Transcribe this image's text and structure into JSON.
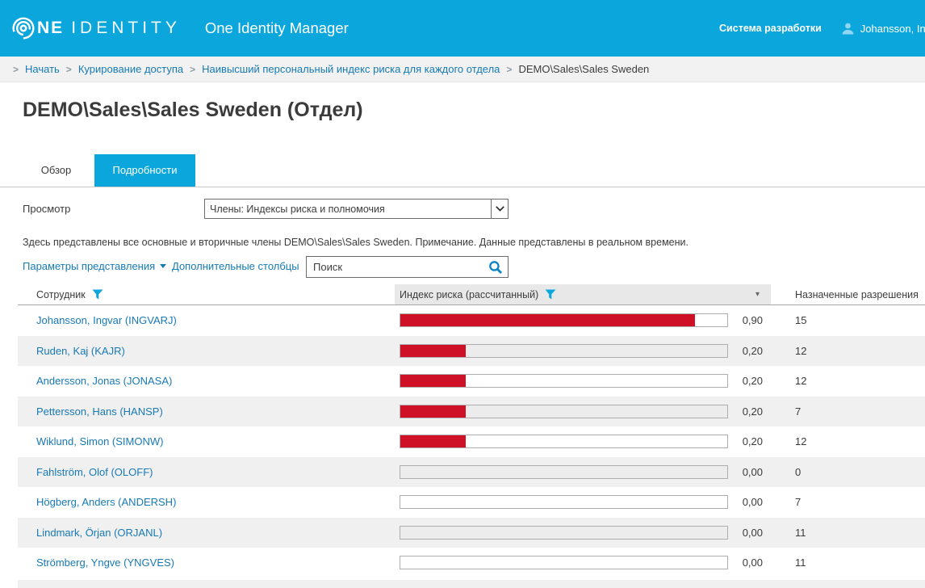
{
  "header": {
    "logo_ne": "NE",
    "logo_identity": "IDENTITY",
    "app_title": "One Identity Manager",
    "environment": "Система разработки",
    "user": "Johansson, Ingvar"
  },
  "breadcrumb": {
    "items": [
      "Начать",
      "Курирование доступа",
      "Наивысший персональный индекс риска для каждого отдела",
      "DEMO\\Sales\\Sales Sweden"
    ]
  },
  "page": {
    "title": "DEMO\\Sales\\Sales Sweden (Отдел)"
  },
  "tabs": [
    {
      "label": "Обзор",
      "active": false
    },
    {
      "label": "Подробности",
      "active": true
    }
  ],
  "view": {
    "label": "Просмотр",
    "selected": "Члены: Индексы риска и полномочия"
  },
  "description": "Здесь представлены все основные и вторичные члены DEMO\\Sales\\Sales Sweden. Примечание. Данные представлены в реальном времени.",
  "toolbar": {
    "view_settings_label": "Параметры представления",
    "additional_columns_label": "Дополнительные столбцы",
    "search_placeholder": "Поиск"
  },
  "table": {
    "columns": [
      {
        "label": "Сотрудник"
      },
      {
        "label": "Индекс риска (рассчитанный)"
      },
      {
        "label": "Назначенные разрешения"
      }
    ],
    "rows": [
      {
        "name": "Johansson, Ingvar (INGVARJ)",
        "risk": 0.9,
        "risk_label": "0,90",
        "permissions": "15"
      },
      {
        "name": "Ruden, Kaj (KAJR)",
        "risk": 0.2,
        "risk_label": "0,20",
        "permissions": "12"
      },
      {
        "name": "Andersson, Jonas (JONASA)",
        "risk": 0.2,
        "risk_label": "0,20",
        "permissions": "12"
      },
      {
        "name": "Pettersson, Hans (HANSP)",
        "risk": 0.2,
        "risk_label": "0,20",
        "permissions": "7"
      },
      {
        "name": "Wiklund, Simon (SIMONW)",
        "risk": 0.2,
        "risk_label": "0,20",
        "permissions": "12"
      },
      {
        "name": "Fahlström, Olof (OLOFF)",
        "risk": 0.0,
        "risk_label": "0,00",
        "permissions": "0"
      },
      {
        "name": "Högberg, Anders (ANDERSH)",
        "risk": 0.0,
        "risk_label": "0,00",
        "permissions": "7"
      },
      {
        "name": "Lindmark, Örjan (ORJANL)",
        "risk": 0.0,
        "risk_label": "0,00",
        "permissions": "11"
      },
      {
        "name": "Strömberg, Yngve (YNGVES)",
        "risk": 0.0,
        "risk_label": "0,00",
        "permissions": "11"
      }
    ]
  },
  "colors": {
    "accent": "#0ba7dc",
    "link": "#177ab5",
    "risk_bar": "#ce1126",
    "row_alt": "#f0f0f0",
    "header_col_bg": "#e8e8e8"
  }
}
